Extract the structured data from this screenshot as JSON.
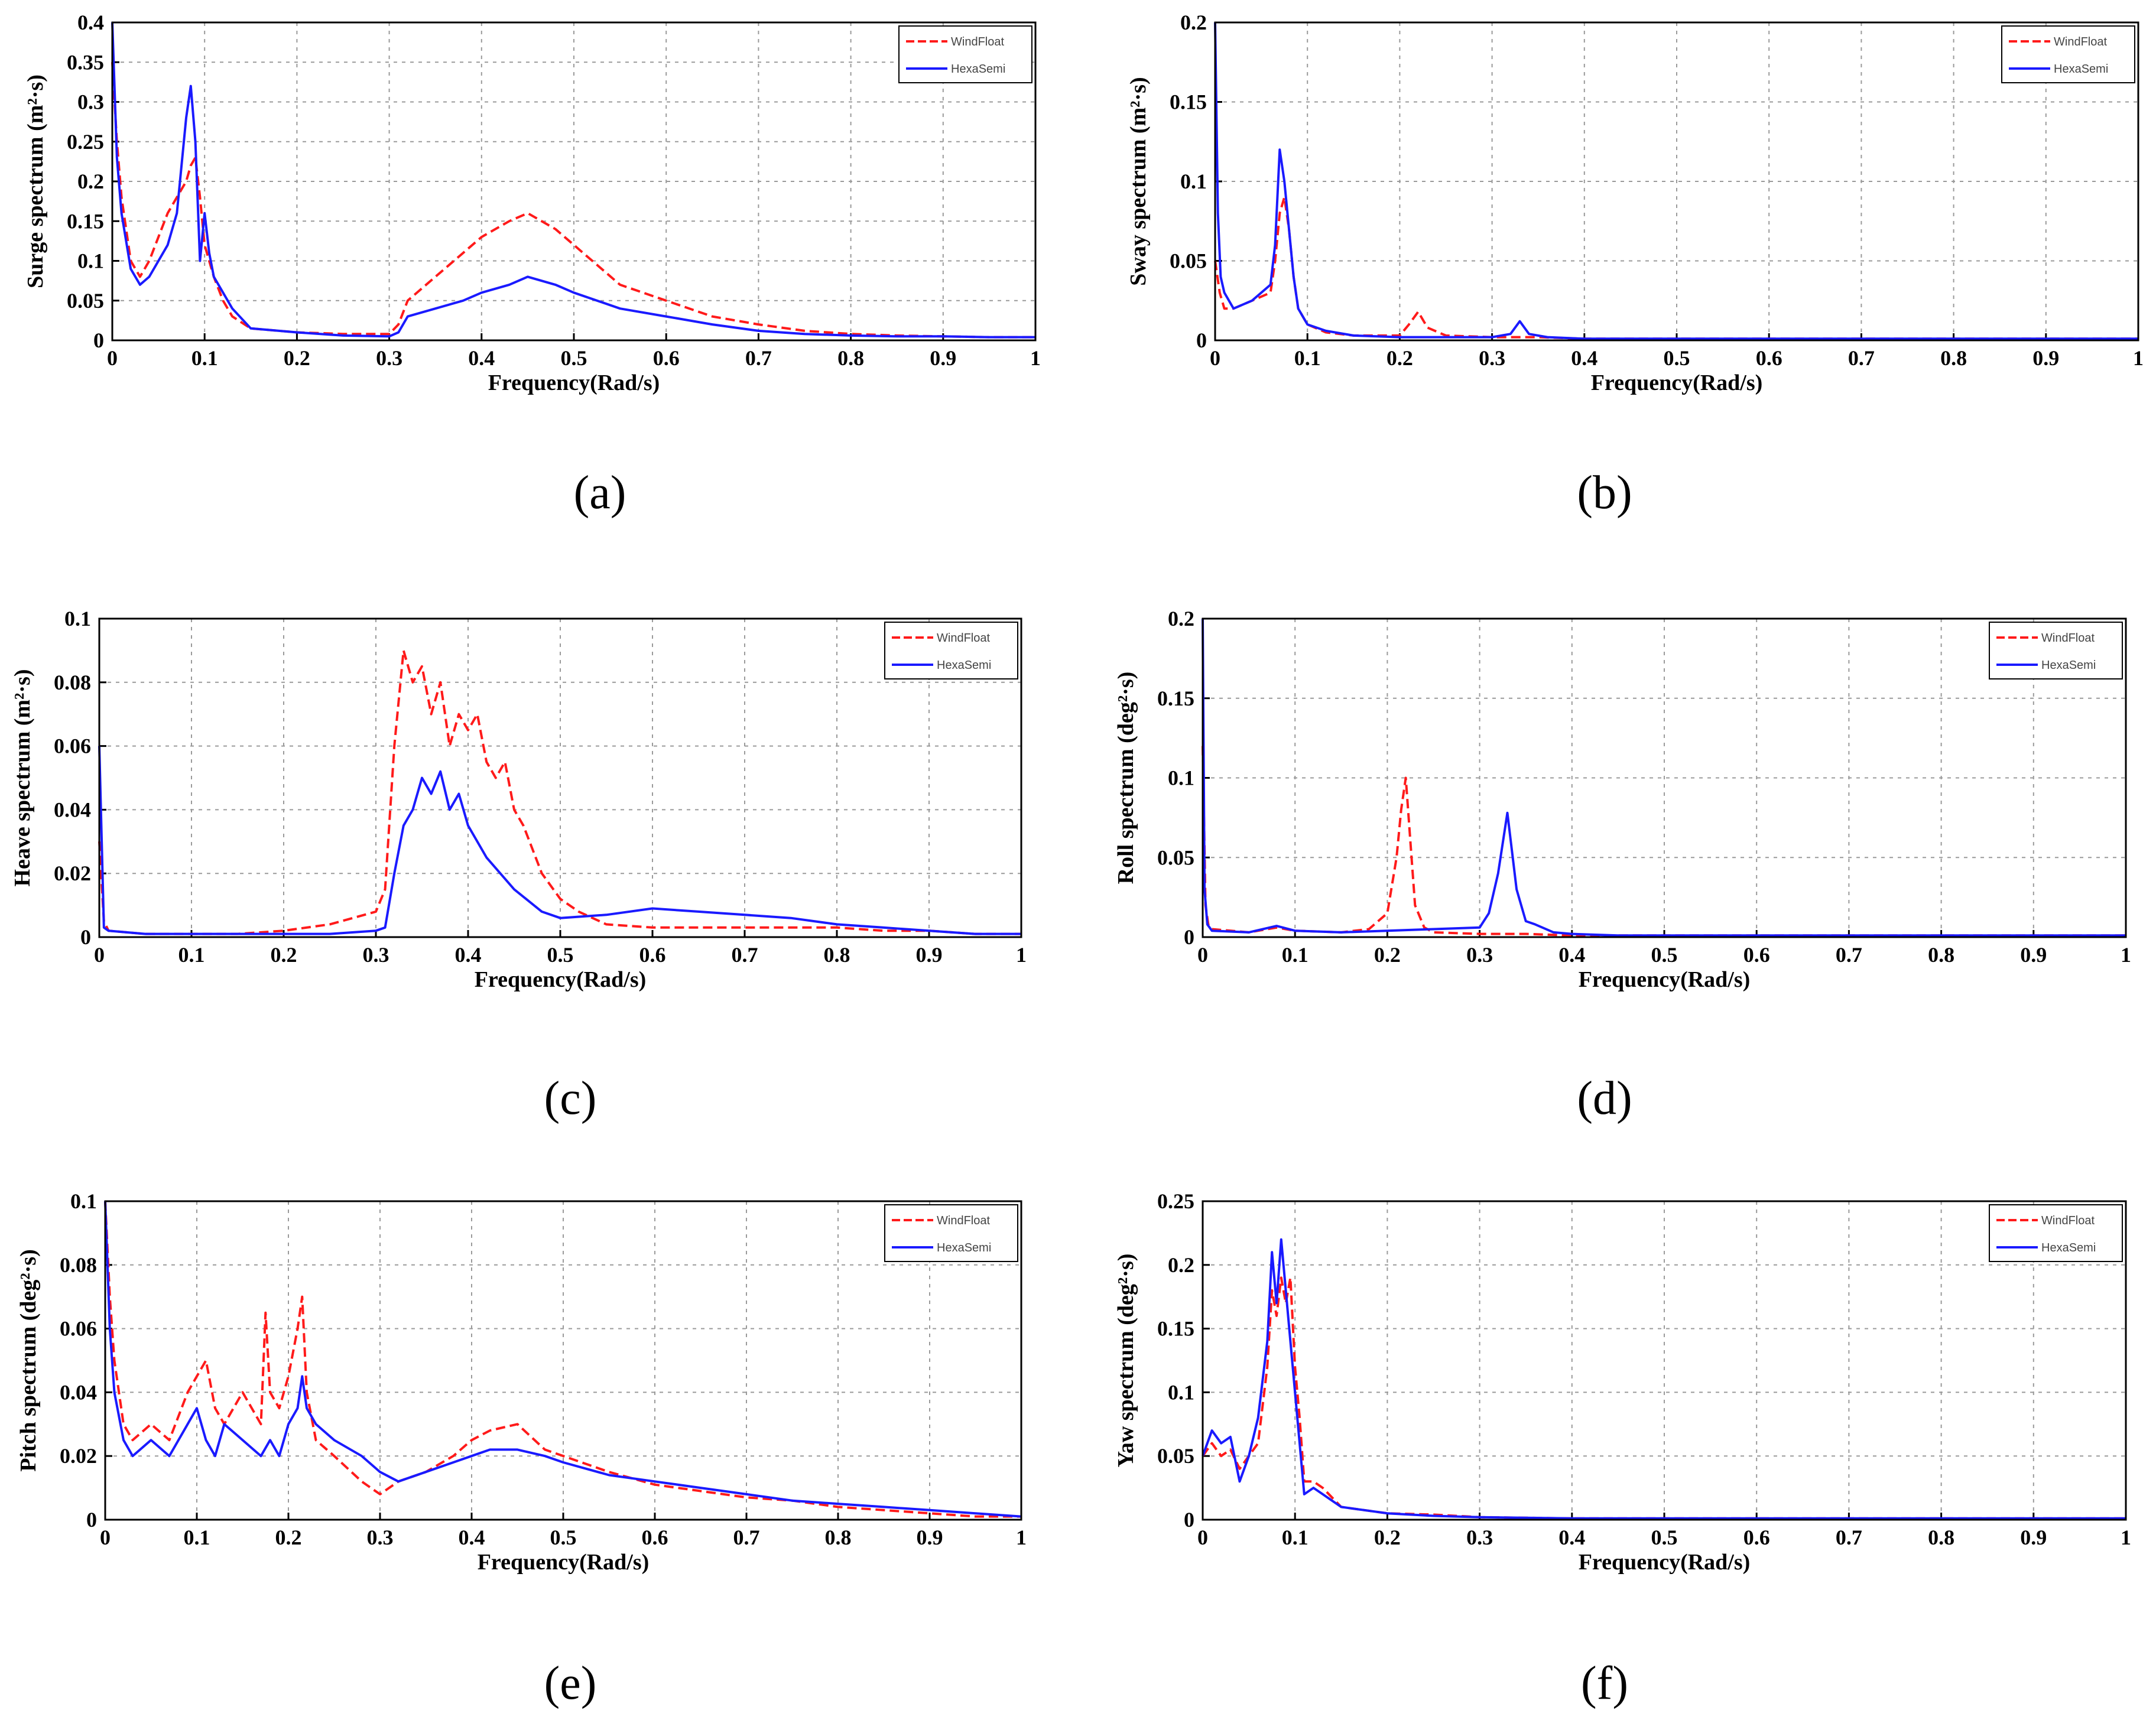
{
  "colors": {
    "windfloat": "#ff1a1a",
    "hexasemi": "#1a1aff",
    "grid": "#9a9a9a",
    "axis": "#000000"
  },
  "chart_data": [
    {
      "type": "line",
      "panel_label": "(a)",
      "xlabel": "Frequency(Rad/s)",
      "ylabel": "Surge spectrum (m²·s)",
      "xlim": [
        0,
        1
      ],
      "ylim": [
        0,
        0.4
      ],
      "xticks": [
        "0",
        "0.1",
        "0.2",
        "0.3",
        "0.4",
        "0.5",
        "0.6",
        "0.7",
        "0.8",
        "0.9",
        "1"
      ],
      "yticks": [
        "0",
        "0.05",
        "0.1",
        "0.15",
        "0.2",
        "0.25",
        "0.3",
        "0.35",
        "0.4"
      ],
      "legend": [
        "WindFloat",
        "HexaSemi"
      ],
      "series": [
        {
          "name": "WindFloat",
          "x": [
            0,
            0.005,
            0.01,
            0.02,
            0.03,
            0.04,
            0.05,
            0.06,
            0.07,
            0.08,
            0.085,
            0.09,
            0.095,
            0.1,
            0.11,
            0.12,
            0.13,
            0.15,
            0.2,
            0.25,
            0.3,
            0.31,
            0.32,
            0.35,
            0.38,
            0.4,
            0.43,
            0.45,
            0.48,
            0.5,
            0.55,
            0.6,
            0.65,
            0.7,
            0.75,
            0.8,
            0.85,
            0.9,
            0.95,
            1.0
          ],
          "y": [
            0.35,
            0.25,
            0.18,
            0.1,
            0.08,
            0.1,
            0.13,
            0.16,
            0.18,
            0.2,
            0.22,
            0.23,
            0.18,
            0.12,
            0.08,
            0.05,
            0.03,
            0.015,
            0.01,
            0.008,
            0.008,
            0.02,
            0.05,
            0.08,
            0.11,
            0.13,
            0.15,
            0.16,
            0.14,
            0.12,
            0.07,
            0.05,
            0.03,
            0.02,
            0.012,
            0.008,
            0.006,
            0.005,
            0.004,
            0.004
          ]
        },
        {
          "name": "HexaSemi",
          "x": [
            0,
            0.005,
            0.01,
            0.02,
            0.03,
            0.04,
            0.05,
            0.06,
            0.07,
            0.08,
            0.085,
            0.09,
            0.095,
            0.1,
            0.105,
            0.11,
            0.12,
            0.13,
            0.15,
            0.2,
            0.25,
            0.3,
            0.31,
            0.32,
            0.35,
            0.38,
            0.4,
            0.43,
            0.45,
            0.48,
            0.5,
            0.55,
            0.6,
            0.65,
            0.7,
            0.75,
            0.8,
            0.85,
            0.9,
            0.95,
            1.0
          ],
          "y": [
            0.4,
            0.23,
            0.16,
            0.09,
            0.07,
            0.08,
            0.1,
            0.12,
            0.16,
            0.28,
            0.32,
            0.25,
            0.1,
            0.16,
            0.11,
            0.08,
            0.06,
            0.04,
            0.015,
            0.01,
            0.006,
            0.005,
            0.01,
            0.03,
            0.04,
            0.05,
            0.06,
            0.07,
            0.08,
            0.07,
            0.06,
            0.04,
            0.03,
            0.02,
            0.012,
            0.008,
            0.006,
            0.005,
            0.005,
            0.004,
            0.004
          ]
        }
      ]
    },
    {
      "type": "line",
      "panel_label": "(b)",
      "xlabel": "Frequency(Rad/s)",
      "ylabel": "Sway spectrum (m²·s)",
      "xlim": [
        0,
        1
      ],
      "ylim": [
        0,
        0.2
      ],
      "xticks": [
        "0",
        "0.1",
        "0.2",
        "0.3",
        "0.4",
        "0.5",
        "0.6",
        "0.7",
        "0.8",
        "0.9",
        "1"
      ],
      "yticks": [
        "0",
        "0.05",
        "0.1",
        "0.15",
        "0.2"
      ],
      "legend": [
        "WindFloat",
        "HexaSemi"
      ],
      "series": [
        {
          "name": "WindFloat",
          "x": [
            0,
            0.005,
            0.01,
            0.02,
            0.04,
            0.06,
            0.065,
            0.07,
            0.075,
            0.08,
            0.085,
            0.09,
            0.1,
            0.12,
            0.15,
            0.2,
            0.21,
            0.22,
            0.23,
            0.25,
            0.3,
            0.35,
            0.4,
            0.5,
            0.6,
            0.7,
            0.8,
            0.9,
            1.0
          ],
          "y": [
            0.05,
            0.03,
            0.02,
            0.02,
            0.025,
            0.03,
            0.05,
            0.08,
            0.09,
            0.07,
            0.04,
            0.02,
            0.01,
            0.005,
            0.003,
            0.003,
            0.01,
            0.018,
            0.008,
            0.003,
            0.002,
            0.002,
            0.001,
            0.001,
            0.001,
            0.001,
            0.001,
            0.001,
            0.001
          ]
        },
        {
          "name": "HexaSemi",
          "x": [
            0,
            0.003,
            0.006,
            0.01,
            0.02,
            0.04,
            0.06,
            0.065,
            0.07,
            0.075,
            0.08,
            0.085,
            0.09,
            0.1,
            0.12,
            0.15,
            0.2,
            0.25,
            0.3,
            0.32,
            0.33,
            0.34,
            0.36,
            0.4,
            0.5,
            0.6,
            0.7,
            0.8,
            0.9,
            1.0
          ],
          "y": [
            0.2,
            0.08,
            0.04,
            0.03,
            0.02,
            0.025,
            0.035,
            0.06,
            0.12,
            0.1,
            0.07,
            0.04,
            0.02,
            0.01,
            0.006,
            0.003,
            0.002,
            0.002,
            0.002,
            0.004,
            0.012,
            0.004,
            0.002,
            0.001,
            0.001,
            0.001,
            0.001,
            0.001,
            0.001,
            0.001
          ]
        }
      ]
    },
    {
      "type": "line",
      "panel_label": "(c)",
      "xlabel": "Frequency(Rad/s)",
      "ylabel": "Heave spectrum (m²·s)",
      "xlim": [
        0,
        1
      ],
      "ylim": [
        0,
        0.1
      ],
      "xticks": [
        "0",
        "0.1",
        "0.2",
        "0.3",
        "0.4",
        "0.5",
        "0.6",
        "0.7",
        "0.8",
        "0.9",
        "1"
      ],
      "yticks": [
        "0",
        "0.02",
        "0.04",
        "0.06",
        "0.08",
        "0.1"
      ],
      "legend": [
        "WindFloat",
        "HexaSemi"
      ],
      "series": [
        {
          "name": "WindFloat",
          "x": [
            0,
            0.005,
            0.01,
            0.05,
            0.1,
            0.15,
            0.2,
            0.25,
            0.3,
            0.31,
            0.32,
            0.33,
            0.34,
            0.35,
            0.36,
            0.37,
            0.38,
            0.39,
            0.4,
            0.41,
            0.42,
            0.43,
            0.44,
            0.45,
            0.46,
            0.48,
            0.5,
            0.52,
            0.55,
            0.6,
            0.65,
            0.7,
            0.75,
            0.8,
            0.85,
            0.9,
            0.95,
            1.0
          ],
          "y": [
            0.03,
            0.005,
            0.002,
            0.001,
            0.001,
            0.001,
            0.002,
            0.004,
            0.008,
            0.015,
            0.06,
            0.09,
            0.08,
            0.085,
            0.07,
            0.08,
            0.06,
            0.07,
            0.065,
            0.07,
            0.055,
            0.05,
            0.055,
            0.04,
            0.035,
            0.02,
            0.012,
            0.008,
            0.004,
            0.003,
            0.003,
            0.003,
            0.003,
            0.003,
            0.002,
            0.002,
            0.001,
            0.001
          ]
        },
        {
          "name": "HexaSemi",
          "x": [
            0,
            0.005,
            0.01,
            0.05,
            0.1,
            0.15,
            0.2,
            0.25,
            0.3,
            0.31,
            0.32,
            0.33,
            0.34,
            0.35,
            0.36,
            0.37,
            0.38,
            0.39,
            0.4,
            0.42,
            0.45,
            0.48,
            0.5,
            0.55,
            0.6,
            0.65,
            0.7,
            0.75,
            0.8,
            0.85,
            0.9,
            0.95,
            1.0
          ],
          "y": [
            0.06,
            0.003,
            0.002,
            0.001,
            0.001,
            0.001,
            0.001,
            0.001,
            0.002,
            0.003,
            0.02,
            0.035,
            0.04,
            0.05,
            0.045,
            0.052,
            0.04,
            0.045,
            0.035,
            0.025,
            0.015,
            0.008,
            0.006,
            0.007,
            0.009,
            0.008,
            0.007,
            0.006,
            0.004,
            0.003,
            0.002,
            0.001,
            0.001
          ]
        }
      ]
    },
    {
      "type": "line",
      "panel_label": "(d)",
      "xlabel": "Frequency(Rad/s)",
      "ylabel": "Roll spectrum (deg²·s)",
      "xlim": [
        0,
        1
      ],
      "ylim": [
        0,
        0.2
      ],
      "xticks": [
        "0",
        "0.1",
        "0.2",
        "0.3",
        "0.4",
        "0.5",
        "0.6",
        "0.7",
        "0.8",
        "0.9",
        "1"
      ],
      "yticks": [
        "0",
        "0.05",
        "0.1",
        "0.15",
        "0.2"
      ],
      "legend": [
        "WindFloat",
        "HexaSemi"
      ],
      "series": [
        {
          "name": "WindFloat",
          "x": [
            0,
            0.003,
            0.006,
            0.01,
            0.05,
            0.08,
            0.1,
            0.15,
            0.18,
            0.2,
            0.21,
            0.215,
            0.22,
            0.225,
            0.23,
            0.24,
            0.25,
            0.3,
            0.35,
            0.4,
            0.5,
            0.6,
            0.7,
            0.8,
            0.9,
            1.0
          ],
          "y": [
            0.12,
            0.02,
            0.008,
            0.005,
            0.003,
            0.006,
            0.004,
            0.003,
            0.005,
            0.015,
            0.05,
            0.08,
            0.1,
            0.06,
            0.02,
            0.006,
            0.003,
            0.002,
            0.002,
            0.001,
            0.001,
            0.001,
            0.001,
            0.001,
            0.001,
            0.001
          ]
        },
        {
          "name": "HexaSemi",
          "x": [
            0,
            0.002,
            0.005,
            0.01,
            0.05,
            0.08,
            0.1,
            0.15,
            0.2,
            0.25,
            0.3,
            0.31,
            0.32,
            0.33,
            0.34,
            0.35,
            0.36,
            0.38,
            0.4,
            0.45,
            0.5,
            0.6,
            0.7,
            0.8,
            0.9,
            1.0
          ],
          "y": [
            0.2,
            0.03,
            0.008,
            0.004,
            0.003,
            0.007,
            0.004,
            0.003,
            0.004,
            0.005,
            0.006,
            0.015,
            0.04,
            0.078,
            0.03,
            0.01,
            0.008,
            0.003,
            0.002,
            0.001,
            0.001,
            0.001,
            0.001,
            0.001,
            0.001,
            0.001
          ]
        }
      ]
    },
    {
      "type": "line",
      "panel_label": "(e)",
      "xlabel": "Frequency(Rad/s)",
      "ylabel": "Pitch spectrum (deg²·s)",
      "xlim": [
        0,
        1
      ],
      "ylim": [
        0,
        0.1
      ],
      "xticks": [
        "0",
        "0.1",
        "0.2",
        "0.3",
        "0.4",
        "0.5",
        "0.6",
        "0.7",
        "0.8",
        "0.9",
        "1"
      ],
      "yticks": [
        "0",
        "0.02",
        "0.04",
        "0.06",
        "0.08",
        "0.1"
      ],
      "legend": [
        "WindFloat",
        "HexaSemi"
      ],
      "series": [
        {
          "name": "WindFloat",
          "x": [
            0,
            0.005,
            0.01,
            0.02,
            0.03,
            0.05,
            0.07,
            0.09,
            0.1,
            0.11,
            0.12,
            0.13,
            0.15,
            0.17,
            0.175,
            0.18,
            0.19,
            0.2,
            0.21,
            0.215,
            0.22,
            0.23,
            0.25,
            0.28,
            0.3,
            0.32,
            0.35,
            0.38,
            0.4,
            0.42,
            0.45,
            0.48,
            0.5,
            0.55,
            0.6,
            0.65,
            0.7,
            0.75,
            0.8,
            0.85,
            0.9,
            0.95,
            1.0
          ],
          "y": [
            0.1,
            0.07,
            0.05,
            0.03,
            0.025,
            0.03,
            0.025,
            0.04,
            0.045,
            0.05,
            0.035,
            0.03,
            0.04,
            0.03,
            0.065,
            0.04,
            0.035,
            0.045,
            0.06,
            0.07,
            0.04,
            0.025,
            0.02,
            0.012,
            0.008,
            0.012,
            0.015,
            0.02,
            0.025,
            0.028,
            0.03,
            0.022,
            0.02,
            0.015,
            0.011,
            0.009,
            0.007,
            0.006,
            0.004,
            0.003,
            0.002,
            0.001,
            0.001
          ]
        },
        {
          "name": "HexaSemi",
          "x": [
            0,
            0.005,
            0.01,
            0.02,
            0.03,
            0.05,
            0.07,
            0.09,
            0.1,
            0.11,
            0.12,
            0.13,
            0.15,
            0.17,
            0.18,
            0.19,
            0.2,
            0.21,
            0.215,
            0.22,
            0.23,
            0.25,
            0.28,
            0.3,
            0.32,
            0.35,
            0.38,
            0.4,
            0.42,
            0.45,
            0.48,
            0.5,
            0.55,
            0.6,
            0.65,
            0.7,
            0.75,
            0.8,
            0.85,
            0.9,
            0.95,
            1.0
          ],
          "y": [
            0.1,
            0.06,
            0.04,
            0.025,
            0.02,
            0.025,
            0.02,
            0.03,
            0.035,
            0.025,
            0.02,
            0.03,
            0.025,
            0.02,
            0.025,
            0.02,
            0.03,
            0.035,
            0.045,
            0.035,
            0.03,
            0.025,
            0.02,
            0.015,
            0.012,
            0.015,
            0.018,
            0.02,
            0.022,
            0.022,
            0.02,
            0.018,
            0.014,
            0.012,
            0.01,
            0.008,
            0.006,
            0.005,
            0.004,
            0.003,
            0.002,
            0.001
          ]
        }
      ]
    },
    {
      "type": "line",
      "panel_label": "(f)",
      "xlabel": "Frequency(Rad/s)",
      "ylabel": "Yaw spectrum (deg²·s)",
      "xlim": [
        0,
        1
      ],
      "ylim": [
        0,
        0.25
      ],
      "xticks": [
        "0",
        "0.1",
        "0.2",
        "0.3",
        "0.4",
        "0.5",
        "0.6",
        "0.7",
        "0.8",
        "0.9",
        "1"
      ],
      "yticks": [
        "0",
        "0.05",
        "0.1",
        "0.15",
        "0.2",
        "0.25"
      ],
      "legend": [
        "WindFloat",
        "HexaSemi"
      ],
      "series": [
        {
          "name": "WindFloat",
          "x": [
            0,
            0.01,
            0.02,
            0.03,
            0.04,
            0.05,
            0.06,
            0.07,
            0.075,
            0.08,
            0.085,
            0.09,
            0.095,
            0.1,
            0.105,
            0.11,
            0.12,
            0.13,
            0.15,
            0.2,
            0.25,
            0.3,
            0.4,
            0.5,
            0.6,
            0.7,
            0.8,
            0.9,
            1.0
          ],
          "y": [
            0.05,
            0.06,
            0.05,
            0.055,
            0.04,
            0.05,
            0.06,
            0.12,
            0.18,
            0.16,
            0.19,
            0.17,
            0.19,
            0.12,
            0.08,
            0.03,
            0.03,
            0.025,
            0.01,
            0.005,
            0.004,
            0.002,
            0.001,
            0.001,
            0.001,
            0.001,
            0.001,
            0.001,
            0.001
          ]
        },
        {
          "name": "HexaSemi",
          "x": [
            0,
            0.01,
            0.02,
            0.03,
            0.04,
            0.05,
            0.06,
            0.07,
            0.075,
            0.08,
            0.085,
            0.09,
            0.095,
            0.1,
            0.105,
            0.11,
            0.12,
            0.13,
            0.15,
            0.2,
            0.25,
            0.3,
            0.4,
            0.5,
            0.6,
            0.7,
            0.8,
            0.9,
            1.0
          ],
          "y": [
            0.05,
            0.07,
            0.06,
            0.065,
            0.03,
            0.05,
            0.08,
            0.14,
            0.21,
            0.17,
            0.22,
            0.18,
            0.14,
            0.1,
            0.06,
            0.02,
            0.025,
            0.02,
            0.01,
            0.005,
            0.003,
            0.002,
            0.001,
            0.001,
            0.001,
            0.001,
            0.001,
            0.001,
            0.001
          ]
        }
      ]
    }
  ]
}
